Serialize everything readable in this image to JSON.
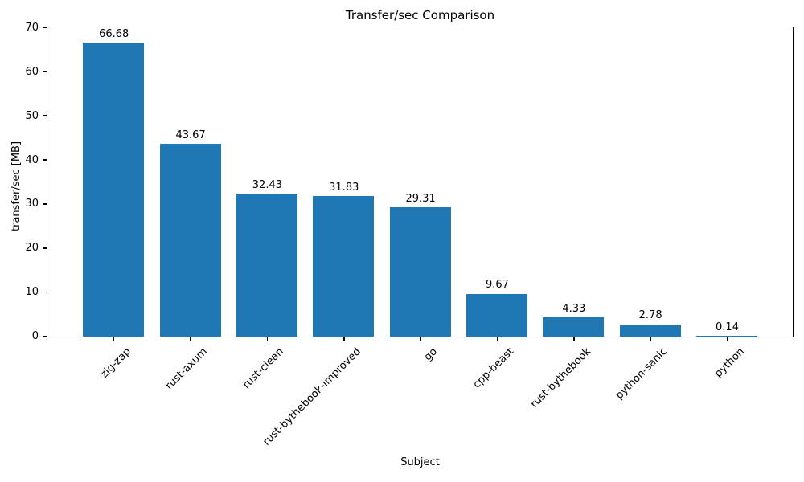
{
  "chart_data": {
    "type": "bar",
    "title": "Transfer/sec Comparison",
    "xlabel": "Subject",
    "ylabel": "transfer/sec [MB]",
    "categories": [
      "zig-zap",
      "rust-axum",
      "rust-clean",
      "rust-bythebook-improved",
      "go",
      "cpp-beast",
      "rust-bythebook",
      "python-sanic",
      "python"
    ],
    "values": [
      66.68,
      43.67,
      32.43,
      31.83,
      29.31,
      9.67,
      4.33,
      2.78,
      0.14
    ],
    "bar_labels": [
      "66.68",
      "43.67",
      "32.43",
      "31.83",
      "29.31",
      "9.67",
      "4.33",
      "2.78",
      "0.14"
    ],
    "ylim": [
      0,
      70
    ],
    "yticks": [
      0,
      10,
      20,
      30,
      40,
      50,
      60,
      70
    ],
    "bar_color": "#1f77b4",
    "background_color": "#ffffff",
    "grid": false,
    "legend_position": "none"
  }
}
